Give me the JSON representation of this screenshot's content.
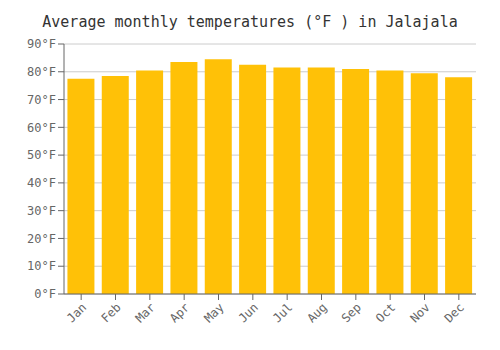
{
  "chart_data": {
    "type": "bar",
    "title": "Average monthly temperatures (°F ) in Jalajala",
    "categories": [
      "Jan",
      "Feb",
      "Mar",
      "Apr",
      "May",
      "Jun",
      "Jul",
      "Aug",
      "Sep",
      "Oct",
      "Nov",
      "Dec"
    ],
    "values": [
      77.5,
      78.5,
      80.5,
      83.5,
      84.5,
      82.5,
      81.5,
      81.5,
      81.0,
      80.5,
      79.5,
      78.0
    ],
    "color": "#FFC107",
    "ylim": [
      0,
      90
    ],
    "yticks": [
      {
        "value": 0,
        "label": "0°F"
      },
      {
        "value": 10,
        "label": "10°F"
      },
      {
        "value": 20,
        "label": "20°F"
      },
      {
        "value": 30,
        "label": "30°F"
      },
      {
        "value": 40,
        "label": "40°F"
      },
      {
        "value": 50,
        "label": "50°F"
      },
      {
        "value": 60,
        "label": "60°F"
      },
      {
        "value": 70,
        "label": "70°F"
      },
      {
        "value": 80,
        "label": "80°F"
      },
      {
        "value": 90,
        "label": "90°F"
      }
    ],
    "grid": true
  }
}
